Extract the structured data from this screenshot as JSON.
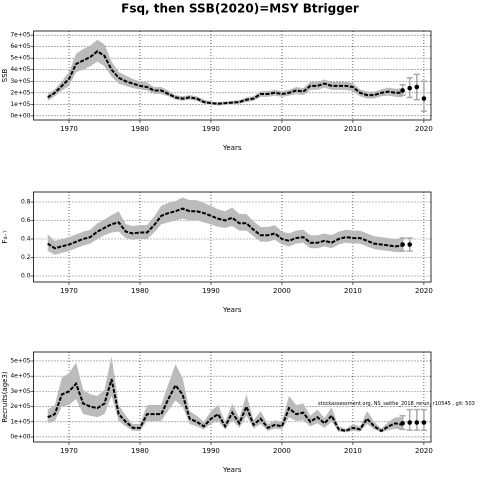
{
  "title": "Fsq, then SSB(2020)=MSY Btrigger",
  "chart_data": [
    {
      "type": "line",
      "ylabel": "SSB",
      "grid": true,
      "line_color": "#000000",
      "band_color": "#bbbbbb",
      "forecast_color": "#000000",
      "errorbar_color": "#aaaaaa",
      "xlim": [
        1965,
        2021
      ],
      "xticks": [
        1970,
        1980,
        1990,
        2000,
        2010,
        2020
      ],
      "xlabel": "Years",
      "ylim": [
        -36000,
        736000
      ],
      "yticks": [
        {
          "value": 0,
          "label": "0e+00"
        },
        {
          "value": 100000,
          "label": "1e+05"
        },
        {
          "value": 200000,
          "label": "2e+05"
        },
        {
          "value": 300000,
          "label": "3e+05"
        },
        {
          "value": 400000,
          "label": "4e+05"
        },
        {
          "value": 500000,
          "label": "5e+05"
        },
        {
          "value": 600000,
          "label": "6e+05"
        },
        {
          "value": 700000,
          "label": "7e+05"
        }
      ],
      "x": [
        1967,
        1968,
        1969,
        1970,
        1971,
        1972,
        1973,
        1974,
        1975,
        1976,
        1977,
        1978,
        1979,
        1980,
        1981,
        1982,
        1983,
        1984,
        1985,
        1986,
        1987,
        1988,
        1989,
        1990,
        1991,
        1992,
        1993,
        1994,
        1995,
        1996,
        1997,
        1998,
        1999,
        2000,
        2001,
        2002,
        2003,
        2004,
        2005,
        2006,
        2007,
        2008,
        2009,
        2010,
        2011,
        2012,
        2013,
        2014,
        2015,
        2016,
        2017
      ],
      "values": [
        160000.0,
        200000.0,
        260000.0,
        320000.0,
        450000.0,
        480000.0,
        510000.0,
        560000.0,
        520000.0,
        400000.0,
        330000.0,
        300000.0,
        280000.0,
        260000.0,
        250000.0,
        220000.0,
        220000.0,
        190000.0,
        160000.0,
        150000.0,
        160000.0,
        150000.0,
        120000.0,
        110000.0,
        105000.0,
        110000.0,
        115000.0,
        120000.0,
        140000.0,
        150000.0,
        190000.0,
        190000.0,
        200000.0,
        190000.0,
        200000.0,
        220000.0,
        210000.0,
        260000.0,
        260000.0,
        280000.0,
        260000.0,
        260000.0,
        260000.0,
        250000.0,
        200000.0,
        180000.0,
        180000.0,
        200000.0,
        210000.0,
        200000.0,
        200000.0
      ],
      "lower": [
        130000.0,
        170000.0,
        220000.0,
        260000.0,
        380000.0,
        400000.0,
        430000.0,
        470000.0,
        430000.0,
        340000.0,
        280000.0,
        260000.0,
        240000.0,
        230000.0,
        220000.0,
        190000.0,
        190000.0,
        170000.0,
        140000.0,
        130000.0,
        140000.0,
        130000.0,
        105000.0,
        95000.0,
        90000.0,
        95000.0,
        100000.0,
        105000.0,
        120000.0,
        130000.0,
        165000.0,
        165000.0,
        175000.0,
        165000.0,
        175000.0,
        190000.0,
        180000.0,
        225000.0,
        225000.0,
        245000.0,
        225000.0,
        225000.0,
        225000.0,
        215000.0,
        170000.0,
        150000.0,
        150000.0,
        170000.0,
        175000.0,
        165000.0,
        160000.0
      ],
      "upper": [
        190000.0,
        230000.0,
        300000.0,
        380000.0,
        540000.0,
        580000.0,
        610000.0,
        660000.0,
        620000.0,
        470000.0,
        380000.0,
        350000.0,
        320000.0,
        300000.0,
        290000.0,
        250000.0,
        250000.0,
        220000.0,
        180000.0,
        170000.0,
        180000.0,
        170000.0,
        140000.0,
        125000.0,
        120000.0,
        125000.0,
        130000.0,
        135000.0,
        160000.0,
        170000.0,
        215000.0,
        215000.0,
        225000.0,
        215000.0,
        225000.0,
        250000.0,
        240000.0,
        295000.0,
        295000.0,
        315000.0,
        295000.0,
        295000.0,
        295000.0,
        285000.0,
        230000.0,
        210000.0,
        210000.0,
        230000.0,
        245000.0,
        235000.0,
        240000.0
      ],
      "forecast": {
        "x": [
          2017,
          2018,
          2019,
          2020
        ],
        "values": [
          220000.0,
          240000.0,
          250000.0,
          150000.0
        ],
        "lower": [
          180000.0,
          160000.0,
          140000.0,
          40000.0
        ],
        "upper": [
          270000.0,
          330000.0,
          360000.0,
          300000.0
        ]
      }
    },
    {
      "type": "line",
      "ylabel": "F₄₋₇",
      "grid": true,
      "line_color": "#000000",
      "band_color": "#bbbbbb",
      "forecast_color": "#000000",
      "errorbar_color": "#aaaaaa",
      "xlim": [
        1965,
        2021
      ],
      "xticks": [
        1970,
        1980,
        1990,
        2000,
        2010,
        2020
      ],
      "xlabel": "Years",
      "ylim": [
        -0.065,
        0.908
      ],
      "yticks": [
        {
          "value": 0,
          "label": "0.0"
        },
        0.2,
        0.4,
        0.6,
        0.8
      ],
      "x": [
        1967,
        1968,
        1969,
        1970,
        1971,
        1972,
        1973,
        1974,
        1975,
        1976,
        1977,
        1978,
        1979,
        1980,
        1981,
        1982,
        1983,
        1984,
        1985,
        1986,
        1987,
        1988,
        1989,
        1990,
        1991,
        1992,
        1993,
        1994,
        1995,
        1996,
        1997,
        1998,
        1999,
        2000,
        2001,
        2002,
        2003,
        2004,
        2005,
        2006,
        2007,
        2008,
        2009,
        2010,
        2011,
        2012,
        2013,
        2014,
        2015,
        2016,
        2017
      ],
      "values": [
        0.35,
        0.3,
        0.32,
        0.34,
        0.37,
        0.4,
        0.42,
        0.48,
        0.52,
        0.56,
        0.58,
        0.48,
        0.46,
        0.47,
        0.47,
        0.55,
        0.65,
        0.68,
        0.7,
        0.73,
        0.7,
        0.7,
        0.68,
        0.65,
        0.62,
        0.6,
        0.63,
        0.57,
        0.57,
        0.5,
        0.44,
        0.44,
        0.46,
        0.4,
        0.38,
        0.41,
        0.42,
        0.36,
        0.36,
        0.38,
        0.36,
        0.4,
        0.42,
        0.41,
        0.41,
        0.38,
        0.35,
        0.34,
        0.33,
        0.32,
        0.33
      ],
      "lower": [
        0.27,
        0.23,
        0.25,
        0.27,
        0.3,
        0.33,
        0.35,
        0.4,
        0.44,
        0.47,
        0.48,
        0.41,
        0.39,
        0.4,
        0.4,
        0.47,
        0.56,
        0.58,
        0.6,
        0.62,
        0.6,
        0.6,
        0.58,
        0.56,
        0.53,
        0.52,
        0.54,
        0.49,
        0.49,
        0.43,
        0.37,
        0.37,
        0.39,
        0.34,
        0.32,
        0.35,
        0.36,
        0.3,
        0.3,
        0.32,
        0.3,
        0.34,
        0.36,
        0.35,
        0.35,
        0.32,
        0.29,
        0.28,
        0.27,
        0.26,
        0.26
      ],
      "upper": [
        0.45,
        0.38,
        0.4,
        0.42,
        0.45,
        0.48,
        0.5,
        0.57,
        0.61,
        0.66,
        0.7,
        0.56,
        0.54,
        0.55,
        0.55,
        0.64,
        0.76,
        0.79,
        0.81,
        0.85,
        0.82,
        0.82,
        0.79,
        0.76,
        0.72,
        0.7,
        0.74,
        0.67,
        0.67,
        0.59,
        0.53,
        0.53,
        0.55,
        0.48,
        0.46,
        0.49,
        0.5,
        0.44,
        0.44,
        0.46,
        0.44,
        0.48,
        0.5,
        0.49,
        0.49,
        0.46,
        0.43,
        0.42,
        0.41,
        0.4,
        0.41
      ],
      "forecast": {
        "x": [
          2017,
          2018
        ],
        "values": [
          0.34,
          0.34
        ],
        "lower": [
          0.27,
          0.27
        ],
        "upper": [
          0.41,
          0.41
        ]
      }
    },
    {
      "type": "line",
      "ylabel": "Recruits(age3)",
      "grid": true,
      "line_color": "#000000",
      "band_color": "#bbbbbb",
      "forecast_color": "#000000",
      "errorbar_color": "#aaaaaa",
      "xlim": [
        1965,
        2021
      ],
      "xticks": [
        1970,
        1980,
        1990,
        2000,
        2010,
        2020
      ],
      "xlabel": "Years",
      "ylim": [
        -33000,
        559000
      ],
      "yticks": [
        {
          "value": 0,
          "label": "0e+00"
        },
        {
          "value": 100000,
          "label": "1e+05"
        },
        {
          "value": 200000,
          "label": "2e+05"
        },
        {
          "value": 300000,
          "label": "3e+05"
        },
        {
          "value": 400000,
          "label": "4e+05"
        },
        {
          "value": 500000,
          "label": "5e+05"
        }
      ],
      "annotation": "stockassessment.org, NS_saithe_2018_rerun, r10545 , git: 503",
      "x": [
        1967,
        1968,
        1969,
        1970,
        1971,
        1972,
        1973,
        1974,
        1975,
        1976,
        1977,
        1978,
        1979,
        1980,
        1981,
        1982,
        1983,
        1984,
        1985,
        1986,
        1987,
        1988,
        1989,
        1990,
        1991,
        1992,
        1993,
        1994,
        1995,
        1996,
        1997,
        1998,
        1999,
        2000,
        2001,
        2002,
        2003,
        2004,
        2005,
        2006,
        2007,
        2008,
        2009,
        2010,
        2011,
        2012,
        2013,
        2014,
        2015,
        2016,
        2017
      ],
      "values": [
        130000.0,
        150000.0,
        280000.0,
        300000.0,
        350000.0,
        220000.0,
        200000.0,
        190000.0,
        220000.0,
        380000.0,
        150000.0,
        100000.0,
        60000.0,
        60000.0,
        150000.0,
        150000.0,
        150000.0,
        250000.0,
        340000.0,
        280000.0,
        120000.0,
        100000.0,
        70000.0,
        120000.0,
        150000.0,
        70000.0,
        160000.0,
        90000.0,
        200000.0,
        80000.0,
        120000.0,
        60000.0,
        80000.0,
        70000.0,
        190000.0,
        150000.0,
        160000.0,
        100000.0,
        130000.0,
        90000.0,
        140000.0,
        50000.0,
        40000.0,
        60000.0,
        50000.0,
        120000.0,
        70000.0,
        40000.0,
        70000.0,
        90000.0,
        80000.0
      ],
      "lower": [
        90000.0,
        105000.0,
        200000.0,
        210000.0,
        250000.0,
        150000.0,
        140000.0,
        130000.0,
        150000.0,
        270000.0,
        105000.0,
        70000.0,
        40000.0,
        40000.0,
        105000.0,
        105000.0,
        105000.0,
        175000.0,
        240000.0,
        200000.0,
        85000.0,
        70000.0,
        50000.0,
        85000.0,
        105000.0,
        50000.0,
        110000.0,
        60000.0,
        140000.0,
        55000.0,
        85000.0,
        40000.0,
        55000.0,
        50000.0,
        130000.0,
        105000.0,
        110000.0,
        70000.0,
        90000.0,
        60000.0,
        100000.0,
        35000.0,
        30000.0,
        40000.0,
        35000.0,
        85000.0,
        50000.0,
        30000.0,
        45000.0,
        55000.0,
        45000.0
      ],
      "upper": [
        180000.0,
        210000.0,
        390000.0,
        420000.0,
        490000.0,
        310000.0,
        280000.0,
        270000.0,
        310000.0,
        530000.0,
        210000.0,
        140000.0,
        85000.0,
        85000.0,
        210000.0,
        210000.0,
        210000.0,
        350000.0,
        480000.0,
        390000.0,
        170000.0,
        140000.0,
        100000.0,
        170000.0,
        210000.0,
        100000.0,
        220000.0,
        125000.0,
        280000.0,
        110000.0,
        170000.0,
        85000.0,
        110000.0,
        100000.0,
        270000.0,
        210000.0,
        220000.0,
        140000.0,
        180000.0,
        125000.0,
        195000.0,
        70000.0,
        55000.0,
        85000.0,
        70000.0,
        170000.0,
        100000.0,
        55000.0,
        100000.0,
        130000.0,
        130000.0
      ],
      "forecast": {
        "x": [
          2017,
          2018,
          2019,
          2020
        ],
        "values": [
          90000.0,
          95000.0,
          95000.0,
          95000.0
        ],
        "lower": [
          50000.0,
          45000.0,
          45000.0,
          45000.0
        ],
        "upper": [
          140000.0,
          180000.0,
          180000.0,
          180000.0
        ]
      }
    }
  ]
}
